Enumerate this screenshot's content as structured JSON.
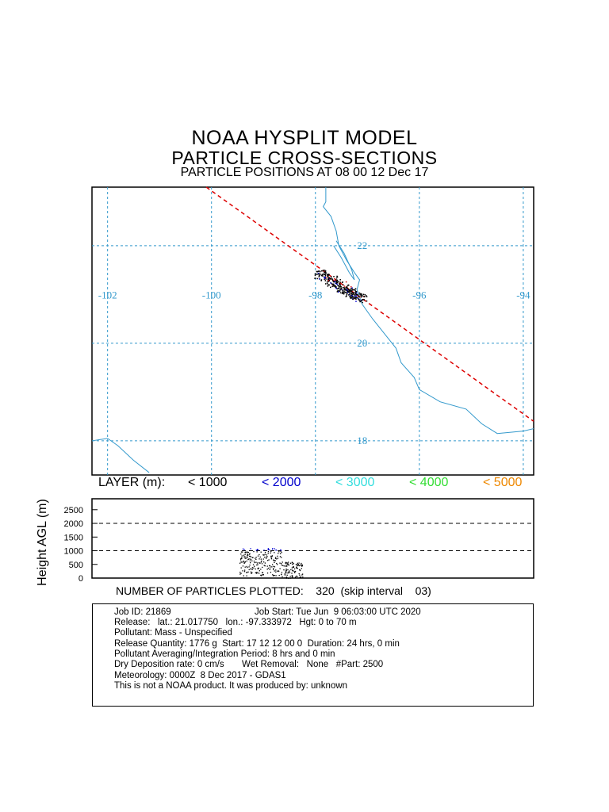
{
  "titles": {
    "line1": "NOAA HYSPLIT MODEL",
    "line2": "PARTICLE CROSS-SECTIONS",
    "line3": "PARTICLE POSITIONS AT 08 00  12 Dec 17"
  },
  "layers": {
    "label": "LAYER (m):",
    "items": [
      {
        "text": "< 1000",
        "color": "#000000"
      },
      {
        "text": "< 2000",
        "color": "#0000cc"
      },
      {
        "text": "< 3000",
        "color": "#33dddd"
      },
      {
        "text": "< 4000",
        "color": "#33dd33"
      },
      {
        "text": "< 5000",
        "color": "#ee8800"
      }
    ]
  },
  "particles_line": "NUMBER OF PARTICLES PLOTTED:    320  (skip interval    03)",
  "info": {
    "job_id": "Job ID: 21869",
    "job_start": "Job Start: Tue Jun  9 06:03:00 UTC 2020",
    "release": "Release:   lat.: 21.017750   lon.: -97.333972   Hgt: 0 to 70 m",
    "pollutant": "Pollutant: Mass - Unspecified",
    "quantity": "Release Quantity: 1776 g  Start: 17 12 12 00 0  Duration: 24 hrs, 0 min",
    "averaging": "Pollutant Averaging/Integration Period: 8 hrs and 0 min",
    "deposition": "Dry Deposition rate: 0 cm/s       Wet Removal:   None   #Part: 2500",
    "meteorology": "Meteorology: 0000Z  8 Dec 2017 - GDAS1",
    "disclaimer": "This is not a NOAA product. It was produced by: unknown"
  },
  "colors": {
    "grid": "#3399cc",
    "coast": "#3399cc",
    "cross_section_line": "#dd0000",
    "particles": "#000000"
  },
  "chart_data": [
    {
      "type": "scatter",
      "title": "PARTICLE POSITIONS AT 08 00  12 Dec 17",
      "lon_ticks": [
        -102,
        -100,
        -98,
        -96,
        -94
      ],
      "lat_ticks": [
        22,
        20,
        18
      ],
      "xlim": [
        -102.3,
        -93.8
      ],
      "ylim": [
        17.3,
        23.2
      ],
      "release_point": {
        "lat": 21.01775,
        "lon": -97.333972
      },
      "cross_section_line": [
        [
          -100.1,
          23.2
        ],
        [
          -93.8,
          18.4
        ]
      ],
      "particle_cluster": {
        "center_lon": -97.5,
        "center_lat": 21.1,
        "count": 320
      },
      "grid": true
    },
    {
      "type": "scatter",
      "ylabel": "Height AGL (m)",
      "y_ticks": [
        2500,
        2000,
        1500,
        1000,
        500,
        0
      ],
      "ylim": [
        0,
        2900
      ],
      "dashed_levels": [
        2000,
        1000
      ],
      "particle_height_range": [
        0,
        1150
      ]
    }
  ]
}
